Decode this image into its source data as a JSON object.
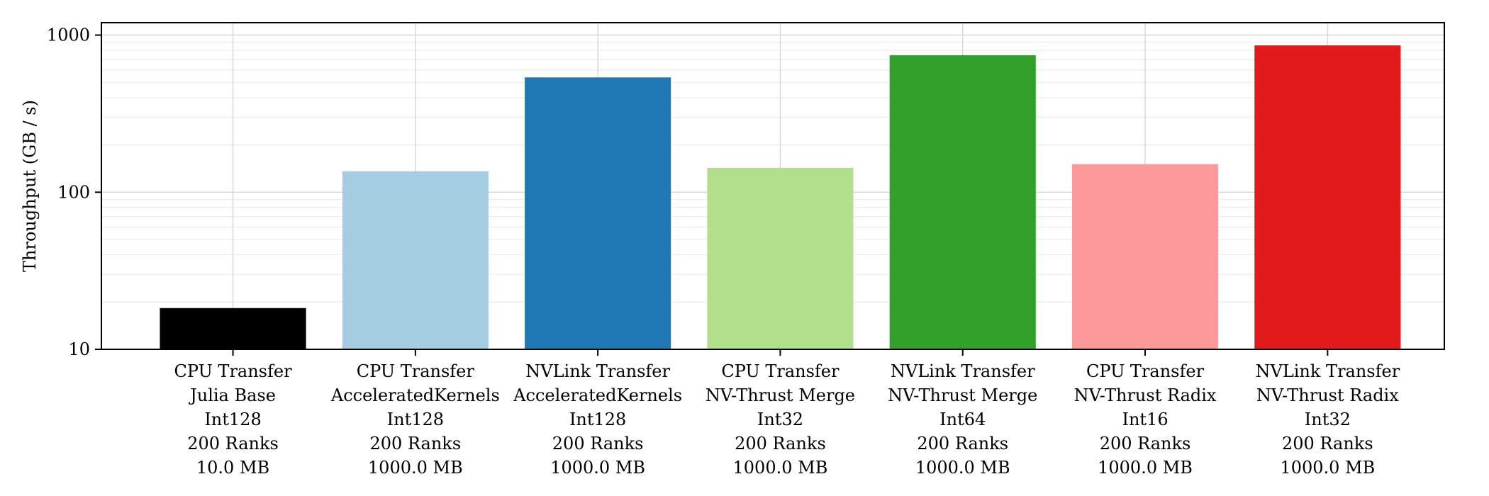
{
  "chart_data": {
    "type": "bar",
    "ylabel": "Throughput (GB / s)",
    "xlabel": "",
    "title": "",
    "yscale": "log",
    "ylim": [
      10,
      1200
    ],
    "yticks": [
      10,
      100,
      1000
    ],
    "grid": true,
    "legend": "none",
    "categories": [
      [
        "CPU Transfer",
        "Julia Base",
        "Int128",
        "200 Ranks",
        "10.0 MB"
      ],
      [
        "CPU Transfer",
        "AcceleratedKernels",
        "Int128",
        "200 Ranks",
        "1000.0 MB"
      ],
      [
        "NVLink Transfer",
        "AcceleratedKernels",
        "Int128",
        "200 Ranks",
        "1000.0 MB"
      ],
      [
        "CPU Transfer",
        "NV-Thrust Merge",
        "Int32",
        "200 Ranks",
        "1000.0 MB"
      ],
      [
        "NVLink Transfer",
        "NV-Thrust Merge",
        "Int64",
        "200 Ranks",
        "1000.0 MB"
      ],
      [
        "CPU Transfer",
        "NV-Thrust Radix",
        "Int16",
        "200 Ranks",
        "1000.0 MB"
      ],
      [
        "NVLink Transfer",
        "NV-Thrust Radix",
        "Int32",
        "200 Ranks",
        "1000.0 MB"
      ]
    ],
    "values": [
      18.3,
      136,
      538,
      143,
      745,
      151,
      860
    ],
    "colors": [
      "#000000",
      "#a6cee3",
      "#1f78b4",
      "#b2df8a",
      "#33a02c",
      "#fb9a99",
      "#e31a1c"
    ]
  }
}
